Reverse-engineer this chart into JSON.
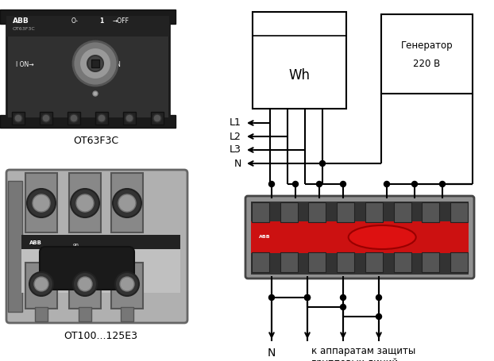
{
  "bg_color": "white",
  "wh_label": "Wh",
  "gen_label1": "Генератор",
  "gen_label2": "220 В",
  "labels_L": [
    "L1",
    "L2",
    "L3",
    "N"
  ],
  "caption1": "ОТ63F3C",
  "caption2": "ОТ100...125Е3",
  "bottom_N": "N",
  "bottom_text": "к аппаратам защиты\nгрупповых линий",
  "line_color": "#000000",
  "switch_red": "#cc1111",
  "switch_gray": "#999999",
  "switch_dark": "#444444",
  "dev1_body": "#303030",
  "dev1_top_bar": "#1a1a1a",
  "dev2_body_light": "#aaaaaa",
  "dev2_body_dark": "#555555"
}
